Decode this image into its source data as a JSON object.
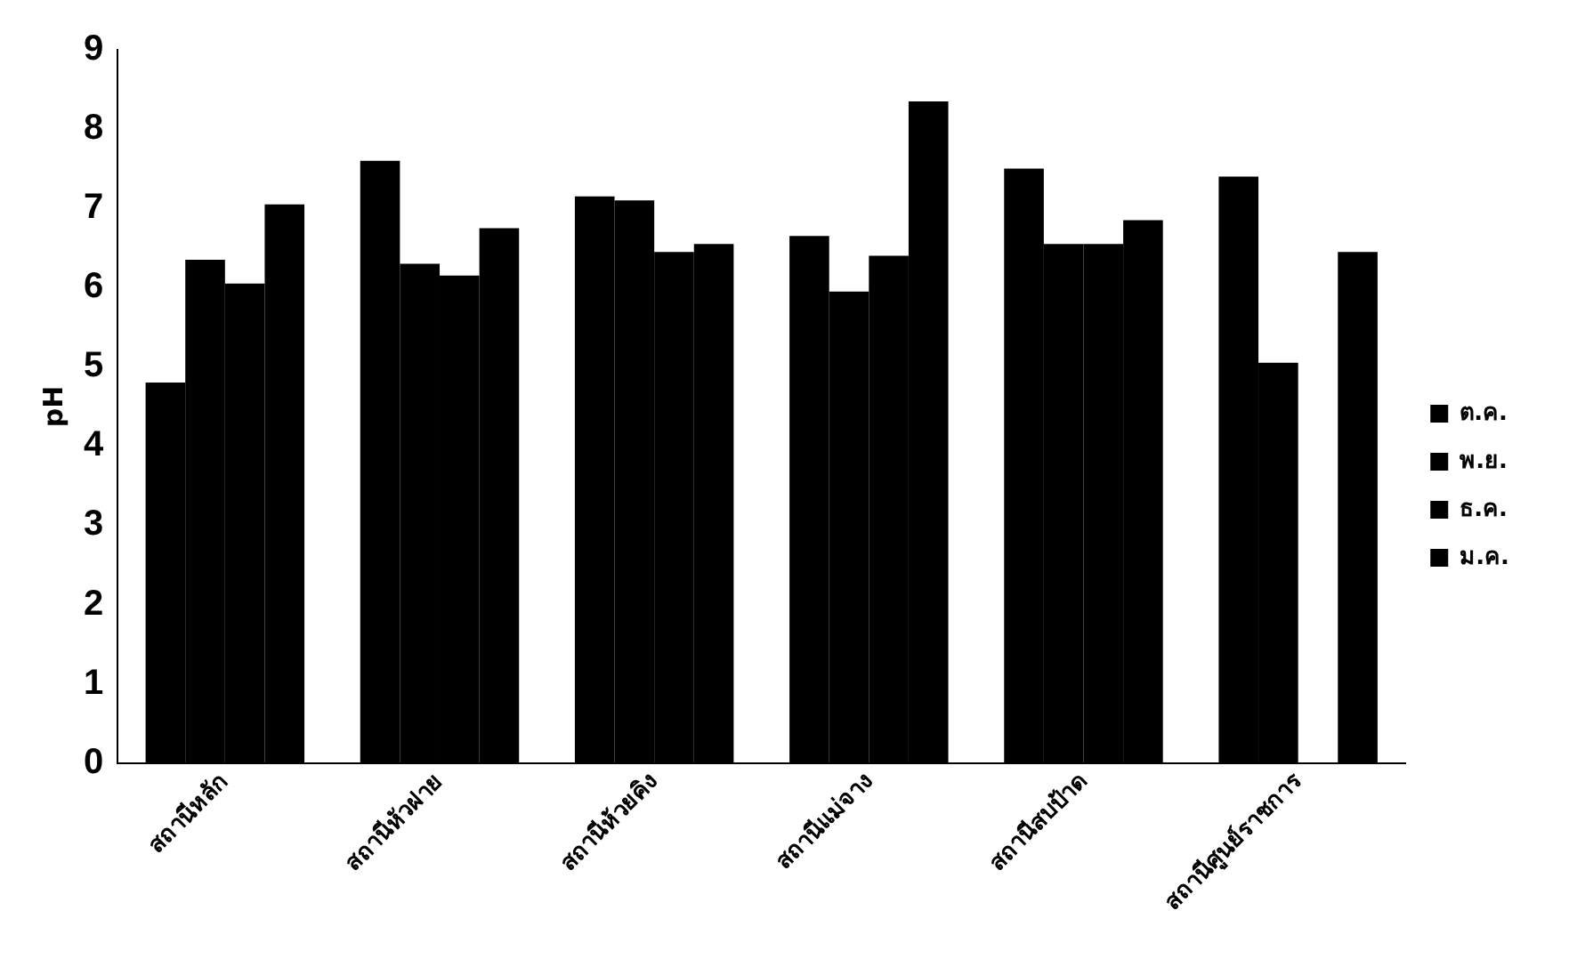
{
  "chart_data": {
    "type": "bar",
    "ylabel": "pH",
    "categories": [
      "สถานีหลัก",
      "สถานีหัวฝาย",
      "สถานีห้วยคิง",
      "สถานีแม่จาง",
      "สถานีสบป้าด",
      "สถานีศูนย์ราชการ"
    ],
    "series": [
      {
        "name": "ต.ค.",
        "color": "#000000",
        "values": [
          4.8,
          7.6,
          7.15,
          6.65,
          7.5,
          7.4
        ]
      },
      {
        "name": "พ.ย.",
        "color": "#000000",
        "values": [
          6.35,
          6.3,
          7.1,
          5.95,
          6.55,
          5.05
        ]
      },
      {
        "name": "ธ.ค.",
        "color": "#000000",
        "values": [
          6.05,
          6.15,
          6.45,
          6.4,
          6.55,
          null
        ]
      },
      {
        "name": "ม.ค.",
        "color": "#000000",
        "values": [
          7.05,
          6.75,
          6.55,
          8.35,
          6.85,
          6.45
        ]
      }
    ],
    "ylim": [
      0,
      9
    ],
    "yticks": [
      0,
      1,
      2,
      3,
      4,
      5,
      6,
      7,
      8,
      9
    ],
    "grid": false,
    "legend": "right"
  }
}
